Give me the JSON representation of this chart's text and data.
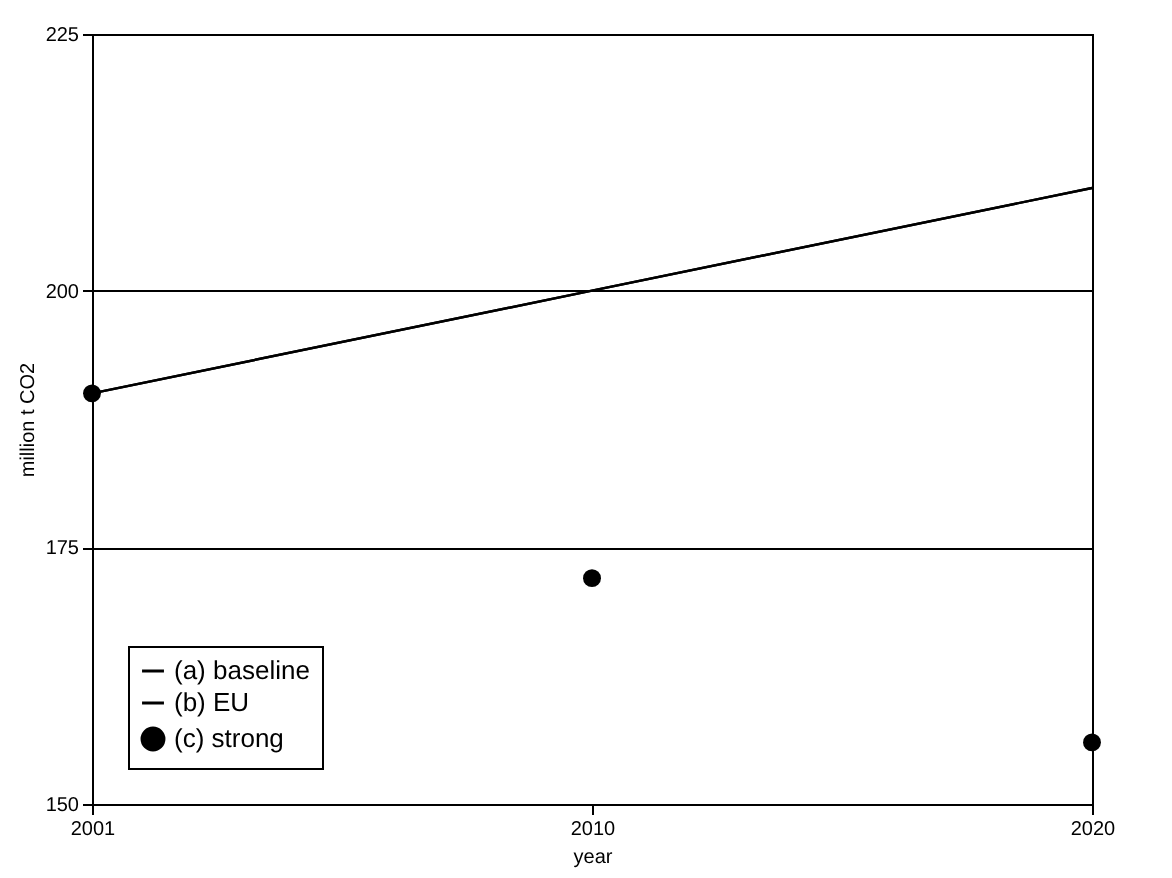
{
  "chart_data": {
    "type": "line",
    "xlabel": "year",
    "ylabel": "million t CO2",
    "categories": [
      "2001",
      "2010",
      "2020"
    ],
    "ylim": [
      150,
      225
    ],
    "yticks": [
      150,
      175,
      200,
      225
    ],
    "grid": "y",
    "legend": "bottom left",
    "series": [
      {
        "name": "(a) baseline",
        "color": "#000000",
        "values": [
          190,
          200,
          210
        ]
      },
      {
        "name": "(b) EU",
        "color": "#000000",
        "values": [
          190,
          200,
          210
        ]
      },
      {
        "name": "(c) strong",
        "type": "scatter",
        "marker": "circle",
        "color": "#000000",
        "values": [
          190,
          172,
          156
        ]
      }
    ]
  }
}
